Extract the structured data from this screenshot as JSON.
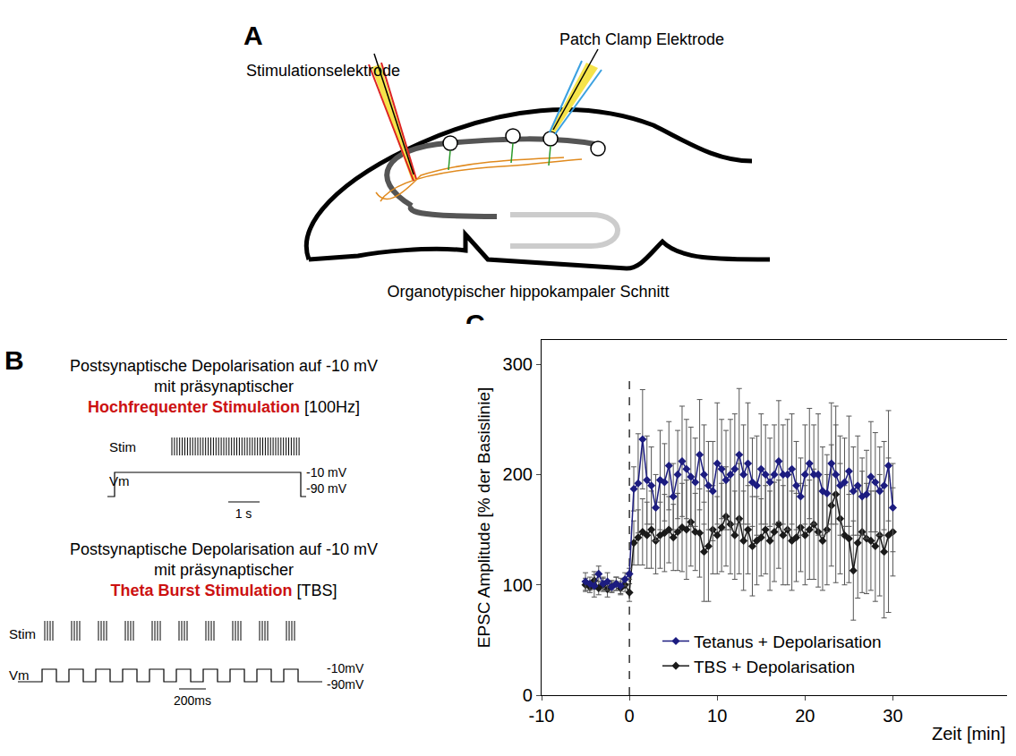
{
  "panel_a": {
    "letter": "A",
    "stim_label": "Stimulationselektrode",
    "patch_label": "Patch Clamp Elektrode",
    "caption": "Organotypischer hippokampaler Schnitt"
  },
  "panel_b": {
    "letter": "B",
    "protocols": [
      {
        "line1": "Postsynaptische Depolarisation auf -10 mV",
        "line2": "mit präsynaptischer",
        "stimulus": "Hochfrequenter Stimulation",
        "stimulus_note": "[100Hz]",
        "stim_label": "Stim",
        "vm_label": "Vm",
        "v_high": "-10 mV",
        "v_low": "-90 mV",
        "scale": "1 s"
      },
      {
        "line1": "Postsynaptische Depolarisation auf -10 mV",
        "line2": "mit präsynaptischer",
        "stimulus": "Theta Burst Stimulation",
        "stimulus_note": "[TBS]",
        "stim_label": "Stim",
        "vm_label": "Vm",
        "v_high": "-10mV",
        "v_low": "-90mV",
        "scale": "200ms"
      }
    ]
  },
  "chart_data": {
    "type": "line",
    "letter": "C",
    "x_label": "Zeit [min]",
    "y_label": "EPSC Amplitude [% der Basislinie]",
    "x": [
      -5,
      -4.5,
      -4,
      -3.5,
      -3,
      -2.5,
      -2,
      -1.5,
      -1,
      -0.5,
      0,
      0.5,
      1,
      1.5,
      2,
      2.5,
      3,
      3.5,
      4,
      4.5,
      5,
      5.5,
      6,
      6.5,
      7,
      7.5,
      8,
      8.5,
      9,
      9.5,
      10,
      10.5,
      11,
      11.5,
      12,
      12.5,
      13,
      13.5,
      14,
      14.5,
      15,
      15.5,
      16,
      16.5,
      17,
      17.5,
      18,
      18.5,
      19,
      19.5,
      20,
      20.5,
      21,
      21.5,
      22,
      22.5,
      23,
      23.5,
      24,
      24.5,
      25,
      25.5,
      26,
      26.5,
      27,
      27.5,
      28,
      28.5,
      29,
      29.5,
      30
    ],
    "series": [
      {
        "name": "Tetanus + Depolarisation",
        "color": "#1c1c80",
        "marker": "diamond",
        "values": [
          103,
          101,
          99,
          110,
          101,
          103,
          98,
          101,
          99,
          105,
          110,
          187,
          192,
          232,
          195,
          190,
          170,
          195,
          193,
          208,
          180,
          200,
          212,
          205,
          198,
          193,
          218,
          200,
          190,
          185,
          210,
          205,
          195,
          200,
          205,
          218,
          200,
          210,
          193,
          190,
          205,
          200,
          193,
          200,
          212,
          200,
          200,
          205,
          190,
          180,
          200,
          210,
          200,
          200,
          185,
          183,
          210,
          200,
          190,
          193,
          203,
          185,
          190,
          180,
          182,
          198,
          193,
          185,
          190,
          208,
          170
        ],
        "error": [
          8,
          6,
          10,
          7,
          6,
          8,
          5,
          6,
          7,
          6,
          5,
          20,
          45,
          45,
          40,
          35,
          30,
          45,
          35,
          40,
          30,
          40,
          50,
          45,
          45,
          40,
          50,
          45,
          40,
          45,
          55,
          45,
          45,
          50,
          50,
          60,
          45,
          55,
          40,
          45,
          50,
          45,
          40,
          45,
          55,
          45,
          50,
          50,
          40,
          35,
          45,
          50,
          45,
          55,
          40,
          35,
          55,
          45,
          45,
          40,
          50,
          40,
          45,
          35,
          40,
          50,
          45,
          40,
          40,
          50,
          40
        ]
      },
      {
        "name": "TBS + Depolarisation",
        "color": "#1a1a1a",
        "marker": "diamond",
        "values": [
          100,
          98,
          104,
          97,
          100,
          96,
          99,
          101,
          97,
          100,
          93,
          138,
          143,
          148,
          145,
          150,
          140,
          145,
          147,
          150,
          143,
          148,
          152,
          150,
          157,
          148,
          147,
          130,
          135,
          150,
          145,
          152,
          162,
          155,
          145,
          160,
          140,
          150,
          135,
          140,
          143,
          150,
          140,
          148,
          155,
          145,
          150,
          140,
          143,
          152,
          145,
          150,
          155,
          148,
          140,
          150,
          172,
          182,
          160,
          145,
          142,
          113,
          138,
          148,
          142,
          140,
          135,
          145,
          130,
          145,
          148
        ],
        "error": [
          6,
          5,
          8,
          6,
          6,
          7,
          5,
          6,
          6,
          6,
          8,
          20,
          25,
          30,
          30,
          35,
          30,
          30,
          35,
          30,
          30,
          35,
          40,
          45,
          40,
          35,
          40,
          45,
          50,
          40,
          35,
          40,
          45,
          45,
          40,
          50,
          45,
          40,
          45,
          40,
          35,
          40,
          45,
          45,
          40,
          45,
          50,
          45,
          40,
          40,
          45,
          45,
          50,
          50,
          45,
          50,
          55,
          80,
          50,
          45,
          40,
          45,
          50,
          55,
          50,
          45,
          50,
          55,
          60,
          70,
          40
        ]
      }
    ],
    "xlim": [
      -10,
      43
    ],
    "xticks": [
      -10,
      0,
      10,
      20,
      30
    ],
    "ylim": [
      0,
      322
    ],
    "yticks": [
      0,
      100,
      200,
      300
    ],
    "vline": {
      "x": 0,
      "ymax": 290,
      "line_style": "dashed"
    },
    "legend": "bottom",
    "grid": false
  }
}
